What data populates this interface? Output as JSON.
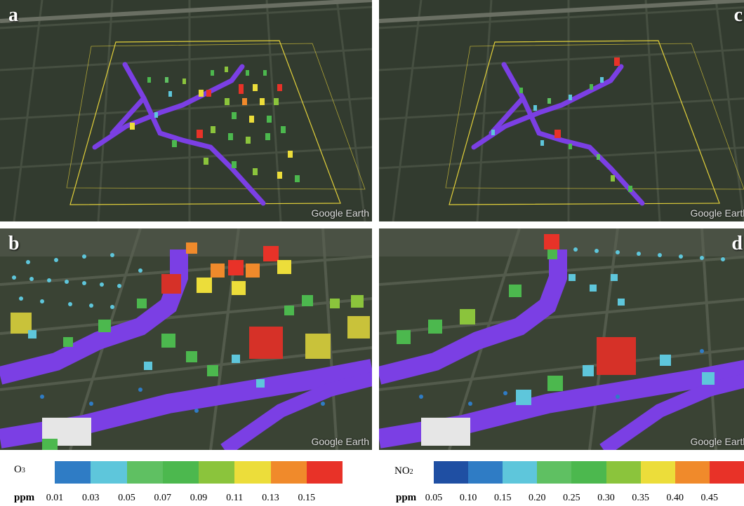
{
  "panels": {
    "a": {
      "label": "a",
      "watermark": "Google Earth"
    },
    "b": {
      "label": "b",
      "watermark": "Google Earth"
    },
    "c": {
      "label": "c",
      "watermark": "Google Earth"
    },
    "d": {
      "label": "d",
      "watermark": "Google Earth"
    }
  },
  "colors": {
    "route": "#7b3fe4",
    "boundary": "#e2d03a",
    "ground": "#2c3528"
  },
  "legend_o3": {
    "pollutant_main": "O",
    "pollutant_sub": "3",
    "unit": "ppm",
    "ticks": [
      "0.01",
      "0.03",
      "0.05",
      "0.07",
      "0.09",
      "0.11",
      "0.13",
      "0.15"
    ],
    "colors": [
      "#2f7cc5",
      "#5ec6db",
      "#5fc062",
      "#4cb84e",
      "#8bc43c",
      "#ecdd3a",
      "#f08a2b",
      "#e83228"
    ]
  },
  "legend_no2": {
    "pollutant_main": "NO",
    "pollutant_sub": "2",
    "unit": "ppm",
    "ticks": [
      "0.05",
      "0.10",
      "0.15",
      "0.20",
      "0.25",
      "0.30",
      "0.35",
      "0.40",
      "0.45"
    ],
    "colors": [
      "#1f4fa3",
      "#2f7cc5",
      "#5ec6db",
      "#5fc062",
      "#4cb84e",
      "#8bc43c",
      "#ecdd3a",
      "#f08a2b",
      "#e83228"
    ]
  }
}
